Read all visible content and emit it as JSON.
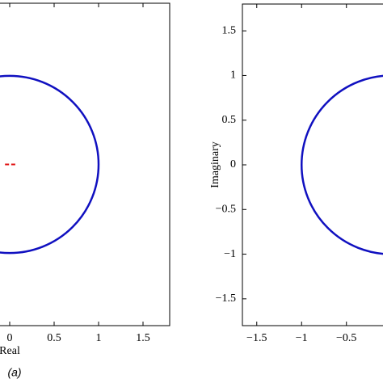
{
  "chart_data": [
    {
      "type": "circle",
      "x_label": "Real",
      "annotation": "(a)",
      "xlim": [
        -1.8,
        1.8
      ],
      "ylim": [
        -1.82,
        1.82
      ],
      "xticks": [
        0,
        0.5,
        1,
        1.5
      ],
      "circles": [
        {
          "cx": 0,
          "cy": 0,
          "r": 1,
          "color": "#1010c0"
        }
      ],
      "points": {
        "x": [
          -0.03,
          0.04
        ],
        "y": [
          0,
          0
        ],
        "color": "#e01010"
      }
    },
    {
      "type": "circle",
      "y_label": "Imaginary",
      "xlim": [
        -1.66,
        1.8
      ],
      "ylim": [
        -1.8,
        1.8
      ],
      "xticks": [
        {
          "value": -1.5,
          "label": "−1.5"
        },
        {
          "value": -1,
          "label": "−1"
        },
        {
          "value": -0.5,
          "label": "−0.5"
        }
      ],
      "yticks": [
        {
          "value": -1.5,
          "label": "−1.5"
        },
        {
          "value": -1,
          "label": "−1"
        },
        {
          "value": -0.5,
          "label": "−0.5"
        },
        0,
        0.5,
        1,
        1.5
      ],
      "circles": [
        {
          "cx": 0,
          "cy": 0,
          "r": 1,
          "color": "#1010c0"
        }
      ]
    }
  ]
}
